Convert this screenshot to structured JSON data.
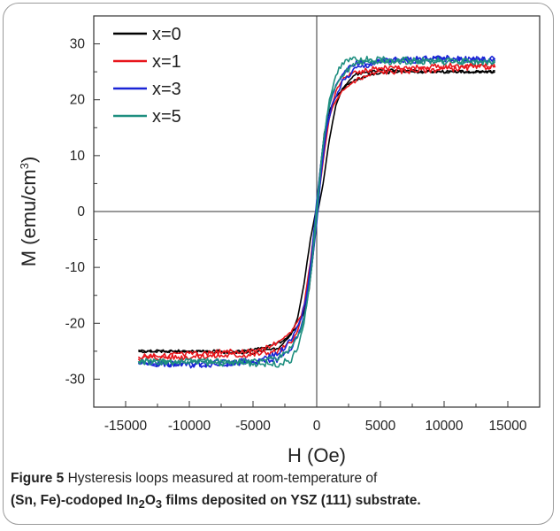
{
  "chart_data": {
    "type": "line",
    "xlabel": "H (Oe)",
    "ylabel_main": "M (emu/cm",
    "ylabel_sup": "3",
    "ylabel_close": ")",
    "xlim": [
      -17500,
      17500
    ],
    "ylim": [
      -35,
      35
    ],
    "x_ticks": [
      -15000,
      -10000,
      -5000,
      0,
      5000,
      10000,
      15000
    ],
    "x_tick_labels": [
      "-15000",
      "-10000",
      "-5000",
      "0",
      "5000",
      "10000",
      "15000"
    ],
    "y_ticks": [
      -30,
      -20,
      -10,
      0,
      10,
      20,
      30
    ],
    "y_tick_labels": [
      "-30",
      "-20",
      "-10",
      "0",
      "10",
      "20",
      "30"
    ],
    "legend_position": "top-left",
    "series": [
      {
        "name": "x=0",
        "color": "#000000",
        "branch_down": [
          [
            14000,
            25
          ],
          [
            10000,
            25
          ],
          [
            5000,
            25.3
          ],
          [
            3000,
            24.5
          ],
          [
            2000,
            22
          ],
          [
            1500,
            19
          ],
          [
            1000,
            13
          ],
          [
            500,
            5
          ],
          [
            0,
            -1
          ],
          [
            -300,
            -8
          ],
          [
            -600,
            -14
          ],
          [
            -1000,
            -18
          ],
          [
            -1500,
            -20.5
          ],
          [
            -2500,
            -23
          ],
          [
            -4000,
            -24.4
          ],
          [
            -6000,
            -25
          ],
          [
            -10000,
            -25
          ],
          [
            -14000,
            -25
          ]
        ],
        "branch_up": [
          [
            -14000,
            -25
          ],
          [
            -10000,
            -25
          ],
          [
            -5000,
            -25.3
          ],
          [
            -3000,
            -24.5
          ],
          [
            -2000,
            -22
          ],
          [
            -1500,
            -19
          ],
          [
            -1000,
            -13
          ],
          [
            -500,
            -5
          ],
          [
            0,
            1
          ],
          [
            300,
            8
          ],
          [
            600,
            14
          ],
          [
            1000,
            18
          ],
          [
            1500,
            20.5
          ],
          [
            2500,
            23
          ],
          [
            4000,
            24.4
          ],
          [
            6000,
            25
          ],
          [
            10000,
            25
          ],
          [
            14000,
            25
          ]
        ]
      },
      {
        "name": "x=1",
        "color": "#e8161c",
        "branch_down": [
          [
            14000,
            26.2
          ],
          [
            10000,
            26
          ],
          [
            5000,
            25.6
          ],
          [
            3000,
            25
          ],
          [
            2000,
            23.5
          ],
          [
            1500,
            21.5
          ],
          [
            1000,
            17
          ],
          [
            500,
            9
          ],
          [
            0,
            0
          ],
          [
            -400,
            -9
          ],
          [
            -800,
            -15
          ],
          [
            -1200,
            -18.5
          ],
          [
            -2000,
            -21.5
          ],
          [
            -3000,
            -23.5
          ],
          [
            -5000,
            -25
          ],
          [
            -10000,
            -25.5
          ],
          [
            -14000,
            -26
          ]
        ],
        "branch_up": [
          [
            -14000,
            -26.2
          ],
          [
            -10000,
            -26
          ],
          [
            -5000,
            -25.6
          ],
          [
            -3000,
            -25
          ],
          [
            -2000,
            -23.5
          ],
          [
            -1500,
            -21.5
          ],
          [
            -1000,
            -17
          ],
          [
            -500,
            -9
          ],
          [
            0,
            0
          ],
          [
            400,
            9
          ],
          [
            800,
            15
          ],
          [
            1200,
            18.5
          ],
          [
            2000,
            21.5
          ],
          [
            3000,
            23.5
          ],
          [
            5000,
            25
          ],
          [
            10000,
            25.5
          ],
          [
            14000,
            26
          ]
        ]
      },
      {
        "name": "x=3",
        "color": "#1a24d6",
        "branch_down": [
          [
            14000,
            27
          ],
          [
            10000,
            27.5
          ],
          [
            5000,
            27
          ],
          [
            3000,
            26.5
          ],
          [
            2000,
            24.5
          ],
          [
            1500,
            22.5
          ],
          [
            1000,
            19
          ],
          [
            500,
            12
          ],
          [
            0,
            2
          ],
          [
            -400,
            -8
          ],
          [
            -800,
            -15
          ],
          [
            -1200,
            -19
          ],
          [
            -2000,
            -23
          ],
          [
            -3000,
            -25.5
          ],
          [
            -5000,
            -26.8
          ],
          [
            -10000,
            -27.3
          ],
          [
            -14000,
            -27.2
          ]
        ],
        "branch_up": [
          [
            -14000,
            -27
          ],
          [
            -10000,
            -27.5
          ],
          [
            -5000,
            -27
          ],
          [
            -3000,
            -26.5
          ],
          [
            -2000,
            -24.5
          ],
          [
            -1500,
            -22.5
          ],
          [
            -1000,
            -19
          ],
          [
            -500,
            -12
          ],
          [
            0,
            -2
          ],
          [
            400,
            8
          ],
          [
            800,
            15
          ],
          [
            1200,
            19
          ],
          [
            2000,
            23
          ],
          [
            3000,
            25.5
          ],
          [
            5000,
            26.8
          ],
          [
            10000,
            27.3
          ],
          [
            14000,
            27.2
          ]
        ]
      },
      {
        "name": "x=5",
        "color": "#1f8f80",
        "branch_down": [
          [
            14000,
            26.8
          ],
          [
            10000,
            27
          ],
          [
            5000,
            27.2
          ],
          [
            3000,
            27.3
          ],
          [
            2000,
            26.5
          ],
          [
            1500,
            24.5
          ],
          [
            1000,
            20
          ],
          [
            500,
            12
          ],
          [
            0,
            1
          ],
          [
            -400,
            -10
          ],
          [
            -800,
            -17
          ],
          [
            -1200,
            -21
          ],
          [
            -2000,
            -24.5
          ],
          [
            -3000,
            -26.2
          ],
          [
            -5000,
            -26.8
          ],
          [
            -10000,
            -26.8
          ],
          [
            -14000,
            -26.8
          ]
        ],
        "branch_up": [
          [
            -14000,
            -26.8
          ],
          [
            -10000,
            -27
          ],
          [
            -5000,
            -27.2
          ],
          [
            -3000,
            -27.3
          ],
          [
            -2000,
            -26.5
          ],
          [
            -1500,
            -24.5
          ],
          [
            -1000,
            -20
          ],
          [
            -500,
            -12
          ],
          [
            0,
            -1
          ],
          [
            400,
            10
          ],
          [
            800,
            17
          ],
          [
            1200,
            21
          ],
          [
            2000,
            24.5
          ],
          [
            3000,
            26.2
          ],
          [
            5000,
            26.8
          ],
          [
            10000,
            26.8
          ],
          [
            14000,
            26.8
          ]
        ]
      }
    ]
  },
  "caption": {
    "label": "Figure 5",
    "text": " Hysteresis loops measured at room-temperature of",
    "line2_prefix": "(Sn, Fe)-codoped In",
    "sub1": "2",
    "mid": "O",
    "sub2": "3",
    "line2_suffix": " films deposited on YSZ (111) substrate."
  }
}
